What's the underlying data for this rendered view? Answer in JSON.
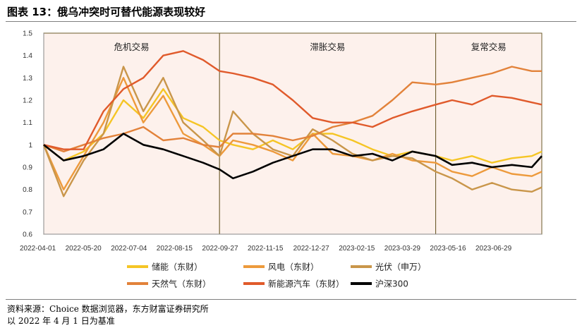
{
  "title": "图表 13：俄乌冲突时可替代能源表现较好",
  "source_line1": "资料来源：Choice 数据浏览器，东方财富证券研究所",
  "source_line2": "以 2022 年 4 月 1 日为基准",
  "chart_data": {
    "type": "line",
    "title": "图表 13：俄乌冲突时可替代能源表现较好",
    "xlabel": "",
    "ylabel": "",
    "ylim": [
      0.6,
      1.5
    ],
    "yticks": [
      "0.6",
      "0.7",
      "0.8",
      "0.9",
      "1",
      "1.1",
      "1.2",
      "1.3",
      "1.4",
      "1.5"
    ],
    "xticks": [
      "2022-04-01",
      "2022-05-20",
      "2022-07-04",
      "2022-08-15",
      "2022-09-27",
      "2022-11-15",
      "2022-12-27",
      "2023-02-15",
      "2023-03-29",
      "2023-05-16",
      "2023-06-29"
    ],
    "grid": false,
    "legend_position": "bottom",
    "regions": [
      {
        "label": "危机交易",
        "start": 0,
        "end": 0.353
      },
      {
        "label": "滞胀交易",
        "start": 0.353,
        "end": 0.787
      },
      {
        "label": "复常交易",
        "start": 0.787,
        "end": 1.0
      }
    ],
    "x": [
      0,
      0.04,
      0.08,
      0.12,
      0.16,
      0.2,
      0.24,
      0.28,
      0.32,
      0.353,
      0.38,
      0.42,
      0.46,
      0.5,
      0.54,
      0.58,
      0.62,
      0.66,
      0.7,
      0.74,
      0.787,
      0.82,
      0.86,
      0.9,
      0.94,
      0.98,
      1.0
    ],
    "series": [
      {
        "name": "储能（东财）",
        "color": "#F5C525",
        "values": [
          1.0,
          0.93,
          0.97,
          1.05,
          1.2,
          1.12,
          1.25,
          1.12,
          1.08,
          1.02,
          1.0,
          0.98,
          1.02,
          0.98,
          1.05,
          1.05,
          1.02,
          0.98,
          0.95,
          0.97,
          0.95,
          0.93,
          0.95,
          0.92,
          0.94,
          0.95,
          0.97
        ]
      },
      {
        "name": "风电（东财）",
        "color": "#ED9A3C",
        "values": [
          1.0,
          0.8,
          0.95,
          1.1,
          1.3,
          1.1,
          1.22,
          1.05,
          1.0,
          0.95,
          1.02,
          1.0,
          0.97,
          0.93,
          1.05,
          0.96,
          0.95,
          0.93,
          0.96,
          0.93,
          0.92,
          0.88,
          0.86,
          0.9,
          0.87,
          0.86,
          0.88
        ]
      },
      {
        "name": "光伏（申万）",
        "color": "#C9964A",
        "values": [
          1.0,
          0.77,
          0.93,
          1.05,
          1.35,
          1.15,
          1.3,
          1.1,
          1.02,
          0.95,
          1.15,
          1.05,
          0.98,
          0.95,
          1.07,
          1.02,
          0.96,
          0.93,
          0.95,
          0.94,
          0.88,
          0.85,
          0.8,
          0.83,
          0.8,
          0.79,
          0.81
        ]
      },
      {
        "name": "天然气（东财）",
        "color": "#E2823A",
        "values": [
          1.0,
          0.97,
          1.0,
          1.03,
          1.05,
          1.08,
          1.02,
          1.03,
          1.0,
          0.99,
          1.05,
          1.05,
          1.04,
          1.02,
          1.04,
          1.08,
          1.1,
          1.13,
          1.2,
          1.28,
          1.27,
          1.28,
          1.3,
          1.32,
          1.35,
          1.33,
          1.33
        ]
      },
      {
        "name": "新能源汽车（东财）",
        "color": "#E05A2B",
        "values": [
          1.0,
          0.98,
          0.98,
          1.15,
          1.25,
          1.3,
          1.4,
          1.42,
          1.38,
          1.33,
          1.32,
          1.3,
          1.27,
          1.2,
          1.12,
          1.1,
          1.1,
          1.08,
          1.12,
          1.15,
          1.18,
          1.2,
          1.18,
          1.22,
          1.21,
          1.19,
          1.18
        ]
      },
      {
        "name": "沪深300",
        "color": "#000000",
        "values": [
          1.0,
          0.93,
          0.95,
          0.98,
          1.05,
          1.0,
          0.98,
          0.95,
          0.92,
          0.89,
          0.85,
          0.88,
          0.92,
          0.95,
          0.98,
          0.98,
          0.95,
          0.96,
          0.93,
          0.97,
          0.95,
          0.91,
          0.92,
          0.9,
          0.91,
          0.9,
          0.95
        ]
      }
    ]
  }
}
